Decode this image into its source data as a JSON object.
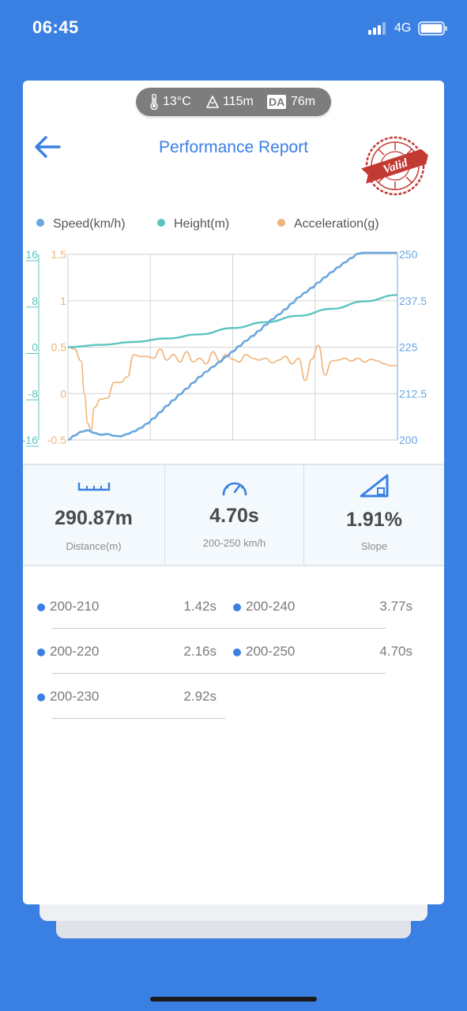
{
  "status_bar": {
    "time": "06:45",
    "network": "4G",
    "icons": [
      "signal-icon",
      "battery-icon"
    ]
  },
  "conditions": {
    "temperature": "13°C",
    "altitude": "115m",
    "da_label": "DA",
    "density_altitude": "76m",
    "icons": [
      "thermometer-icon",
      "mountain-icon"
    ]
  },
  "header": {
    "title": "Performance Report",
    "stamp_text": "Valid",
    "icons": [
      "back-arrow-icon",
      "valid-stamp-icon"
    ]
  },
  "colors": {
    "accent": "#3a80e3",
    "speed": "#6aa7e0",
    "height": "#5cc4be",
    "acceleration": "#f0b37a",
    "stamp": "#c33a33"
  },
  "chart_data": {
    "type": "line",
    "legend_placement": "top",
    "grid": true,
    "series": [
      {
        "name": "Speed(km/h)",
        "axis": "right",
        "x": [
          0,
          2,
          4,
          6,
          8,
          10,
          12,
          14,
          16,
          18,
          20,
          22,
          24,
          26,
          28,
          30,
          32,
          34,
          36,
          38,
          40,
          42,
          44,
          46,
          48,
          50,
          52,
          54,
          56,
          58,
          60,
          62,
          64,
          66,
          68,
          70,
          72,
          74,
          76,
          78,
          80,
          82,
          84,
          86,
          88,
          90,
          92,
          94,
          96,
          98,
          100
        ],
        "values": [
          200,
          201.2,
          202.2,
          202.6,
          201.9,
          201.4,
          201.6,
          201.1,
          201.0,
          201.6,
          202.3,
          203.2,
          204.4,
          205.8,
          207.5,
          209.2,
          210.7,
          212.3,
          213.8,
          215.4,
          217.0,
          218.4,
          219.7,
          221.0,
          222.4,
          223.8,
          225.3,
          226.7,
          228.0,
          229.4,
          231.0,
          232.5,
          233.8,
          235.2,
          236.8,
          238.4,
          239.7,
          241.0,
          242.4,
          243.8,
          245.2,
          246.5,
          247.8,
          249.0,
          250.2,
          251.3,
          252.4,
          253.4,
          254.3,
          255.2,
          256.0
        ]
      },
      {
        "name": "Height(m)",
        "axis": "left-outer",
        "x": [
          0,
          10,
          20,
          30,
          40,
          50,
          60,
          70,
          80,
          90,
          100
        ],
        "values": [
          0,
          0.4,
          0.9,
          1.5,
          2.2,
          3.3,
          4.3,
          5.4,
          6.6,
          7.9,
          9.0
        ]
      },
      {
        "name": "Acceleration(g)",
        "axis": "left-inner",
        "x": [
          0,
          2,
          4,
          5,
          6,
          7,
          8,
          10,
          12,
          14,
          16,
          18,
          20,
          22,
          24,
          26,
          28,
          30,
          32,
          34,
          36,
          38,
          40,
          42,
          44,
          46,
          48,
          50,
          52,
          54,
          56,
          58,
          60,
          62,
          64,
          66,
          68,
          70,
          72,
          74,
          76,
          78,
          80,
          82,
          84,
          86,
          88,
          90,
          92,
          94,
          96,
          98,
          100
        ],
        "values": [
          0.5,
          0.48,
          0.35,
          0.0,
          -0.32,
          -0.4,
          -0.15,
          -0.06,
          -0.05,
          0.12,
          0.12,
          0.18,
          0.42,
          0.4,
          0.4,
          0.38,
          0.48,
          0.36,
          0.42,
          0.34,
          0.45,
          0.34,
          0.38,
          0.32,
          0.45,
          0.35,
          0.42,
          0.37,
          0.34,
          0.42,
          0.38,
          0.36,
          0.38,
          0.33,
          0.36,
          0.4,
          0.32,
          0.38,
          0.14,
          0.37,
          0.52,
          0.2,
          0.35,
          0.36,
          0.38,
          0.35,
          0.38,
          0.34,
          0.37,
          0.35,
          0.32,
          0.3,
          0.3
        ]
      }
    ],
    "axes": {
      "left_outer": {
        "ticks": [
          "16",
          "8",
          "0",
          "-8",
          "-16"
        ],
        "range": [
          -16,
          16
        ]
      },
      "left_inner": {
        "ticks": [
          "1.5",
          "1",
          "0.5",
          "0",
          "-0.5"
        ],
        "range": [
          -0.5,
          1.5
        ]
      },
      "right": {
        "ticks": [
          "250",
          "237.5",
          "225",
          "212.5",
          "200"
        ],
        "range": [
          200,
          250
        ]
      }
    }
  },
  "stats": [
    {
      "value": "290.87m",
      "label": "Distance(m)",
      "icon": "ruler-icon"
    },
    {
      "value": "4.70s",
      "label": "200-250 km/h",
      "icon": "speedometer-icon"
    },
    {
      "value": "1.91%",
      "label": "Slope",
      "icon": "slope-icon"
    }
  ],
  "splits": [
    {
      "range": "200-210",
      "time": "1.42s"
    },
    {
      "range": "200-240",
      "time": "3.77s"
    },
    {
      "range": "200-220",
      "time": "2.16s"
    },
    {
      "range": "200-250",
      "time": "4.70s"
    },
    {
      "range": "200-230",
      "time": "2.92s"
    }
  ]
}
